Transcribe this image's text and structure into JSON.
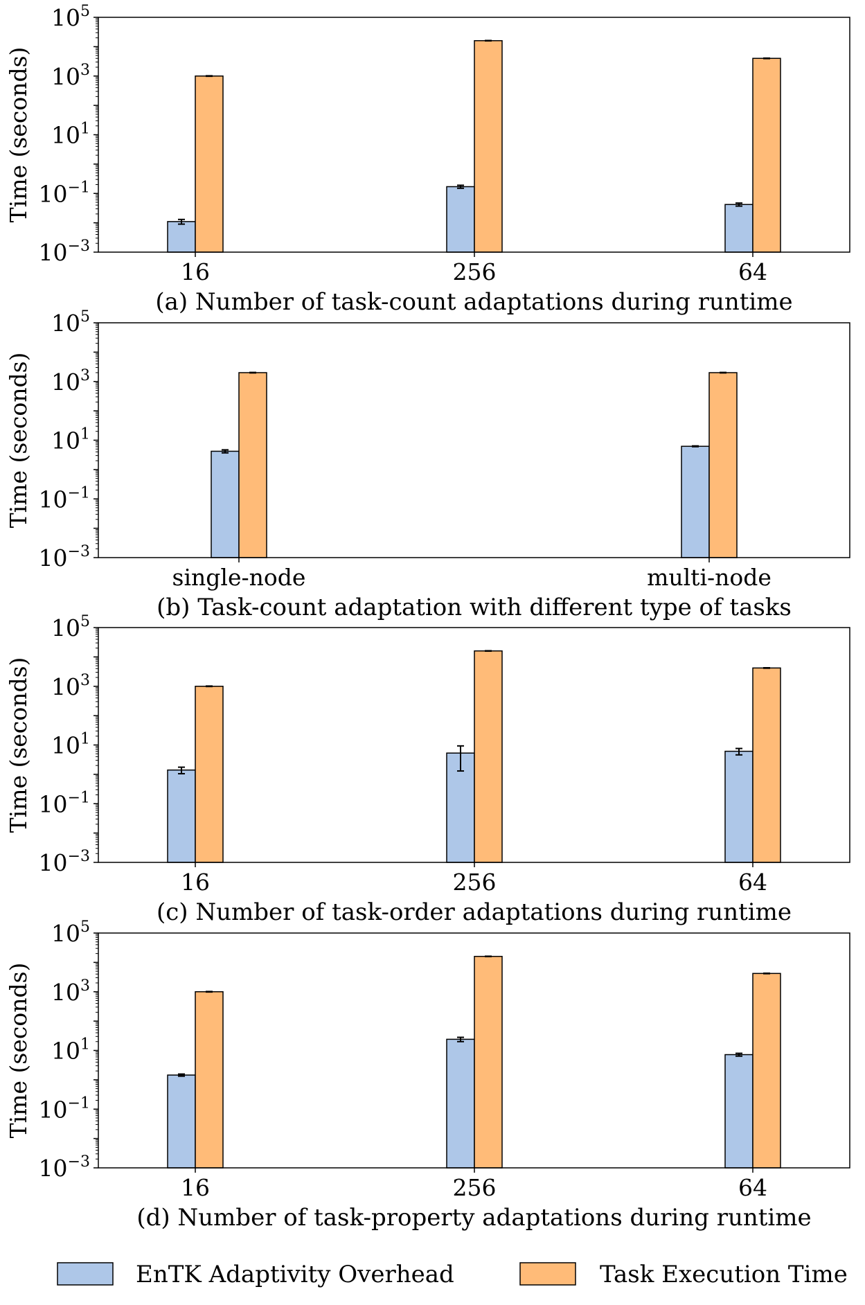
{
  "colors": {
    "overhead": "#aec7e8",
    "execution": "#ffbb78",
    "edge": "#000000"
  },
  "legend": {
    "placement": "bottom",
    "entries": [
      {
        "label": "EnTK Adaptivity Overhead",
        "color": "#aec7e8"
      },
      {
        "label": "Task Execution Time",
        "color": "#ffbb78"
      }
    ]
  },
  "chart_data": [
    {
      "type": "bar",
      "ylabel": "Time (seconds)",
      "xlabel": "(a) Number of task-count adaptations during runtime",
      "yscale": "log",
      "ylim": [
        0.001,
        100000
      ],
      "categories": [
        "16",
        "256",
        "64"
      ],
      "series": [
        {
          "name": "EnTK Adaptivity Overhead",
          "values": [
            0.011,
            0.17,
            0.042
          ],
          "errors": [
            0.002,
            0.02,
            0.005
          ]
        },
        {
          "name": "Task Execution Time",
          "values": [
            1000,
            16000,
            4000
          ],
          "errors": [
            20,
            250,
            80
          ]
        }
      ]
    },
    {
      "type": "bar",
      "ylabel": "Time (seconds)",
      "xlabel": "(b) Task-count adaptation with different type of tasks",
      "yscale": "log",
      "ylim": [
        0.001,
        100000
      ],
      "categories": [
        "single-node",
        "multi-node"
      ],
      "series": [
        {
          "name": "EnTK Adaptivity Overhead",
          "values": [
            4.2,
            6.2
          ],
          "errors": [
            0.5,
            0.2
          ]
        },
        {
          "name": "Task Execution Time",
          "values": [
            2000,
            2000
          ],
          "errors": [
            40,
            40
          ]
        }
      ]
    },
    {
      "type": "bar",
      "ylabel": "Time (seconds)",
      "xlabel": "(c) Number of task-order adaptations during runtime",
      "yscale": "log",
      "ylim": [
        0.001,
        100000
      ],
      "categories": [
        "16",
        "256",
        "64"
      ],
      "series": [
        {
          "name": "EnTK Adaptivity Overhead",
          "values": [
            1.4,
            5.3,
            6.1
          ],
          "errors": [
            0.35,
            4.0,
            1.5
          ]
        },
        {
          "name": "Task Execution Time",
          "values": [
            1000,
            16000,
            4200
          ],
          "errors": [
            20,
            250,
            80
          ]
        }
      ]
    },
    {
      "type": "bar",
      "ylabel": "Time (seconds)",
      "xlabel": "(d) Number of task-property adaptations during runtime",
      "yscale": "log",
      "ylim": [
        0.001,
        100000
      ],
      "categories": [
        "16",
        "256",
        "64"
      ],
      "series": [
        {
          "name": "EnTK Adaptivity Overhead",
          "values": [
            1.45,
            24,
            7.2
          ],
          "errors": [
            0.12,
            4,
            0.8
          ]
        },
        {
          "name": "Task Execution Time",
          "values": [
            1000,
            16000,
            4200
          ],
          "errors": [
            20,
            250,
            80
          ]
        }
      ]
    }
  ]
}
